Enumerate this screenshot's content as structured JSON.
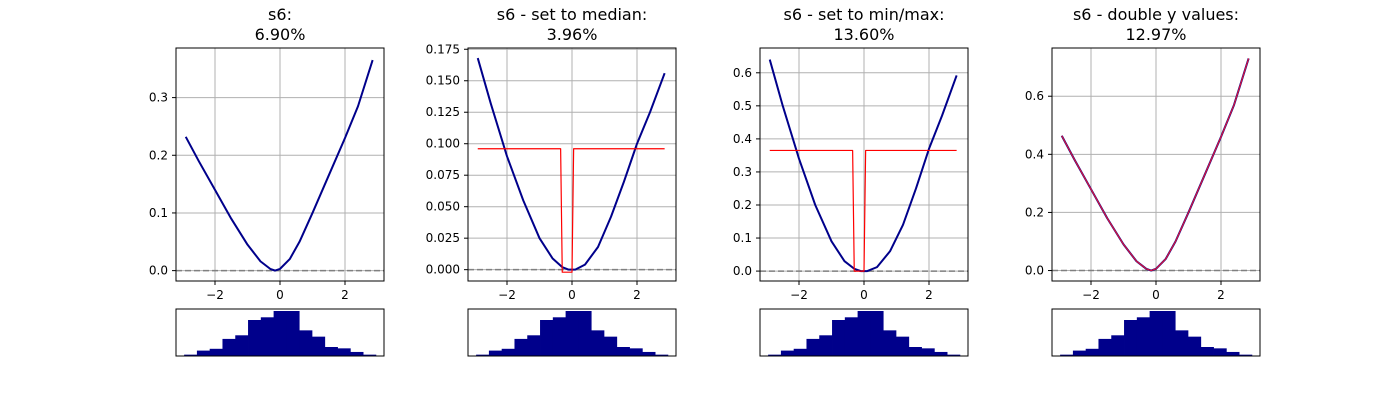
{
  "chart_data": [
    {
      "type": "line",
      "title_line1": "s6:",
      "title_line2": "6.90%",
      "xlim": [
        -3.2,
        3.2
      ],
      "ylim": [
        -0.018,
        0.386
      ],
      "xticks": [
        -2,
        0,
        2
      ],
      "xtick_labels": [
        "−2",
        "0",
        "2"
      ],
      "yticks": [
        0.0,
        0.1,
        0.2,
        0.3
      ],
      "ytick_labels": [
        "0.0",
        "0.1",
        "0.2",
        "0.3"
      ],
      "grid": true,
      "series": [
        {
          "color": "#00008b",
          "x": [
            -2.9,
            -2.5,
            -2.0,
            -1.5,
            -1.0,
            -0.6,
            -0.3,
            -0.15,
            0.0,
            0.3,
            0.6,
            1.0,
            1.5,
            2.0,
            2.4,
            2.85
          ],
          "y": [
            0.232,
            0.19,
            0.14,
            0.09,
            0.045,
            0.016,
            0.003,
            0.0,
            0.003,
            0.02,
            0.05,
            0.1,
            0.165,
            0.23,
            0.285,
            0.365
          ]
        }
      ],
      "reference_y": 0.0,
      "histogram": [
        0.03,
        0.12,
        0.16,
        0.38,
        0.46,
        0.8,
        0.86,
        1.0,
        1.0,
        0.57,
        0.43,
        0.2,
        0.17,
        0.09,
        0.03
      ]
    },
    {
      "type": "line",
      "title_line1": "s6 - set to median:",
      "title_line2": "3.96%",
      "xlim": [
        -3.2,
        3.2
      ],
      "ylim": [
        -0.009,
        0.176
      ],
      "xticks": [
        -2,
        0,
        2
      ],
      "xtick_labels": [
        "−2",
        "0",
        "2"
      ],
      "yticks": [
        0.0,
        0.025,
        0.05,
        0.075,
        0.1,
        0.125,
        0.15,
        0.175
      ],
      "ytick_labels": [
        "0.000",
        "0.025",
        "0.050",
        "0.075",
        "0.100",
        "0.125",
        "0.150",
        "0.175"
      ],
      "grid": true,
      "series": [
        {
          "color": "#00008b",
          "x": [
            -2.9,
            -2.5,
            -2.0,
            -1.5,
            -1.0,
            -0.6,
            -0.3,
            -0.1,
            0.1,
            0.4,
            0.8,
            1.2,
            1.6,
            2.0,
            2.4,
            2.85
          ],
          "y": [
            0.168,
            0.132,
            0.09,
            0.055,
            0.025,
            0.009,
            0.002,
            0.0,
            0.0,
            0.004,
            0.018,
            0.042,
            0.07,
            0.1,
            0.125,
            0.156
          ]
        },
        {
          "color": "#ff0000",
          "x": [
            -2.9,
            -0.35,
            -0.3,
            0.0,
            0.05,
            2.85
          ],
          "y": [
            0.096,
            0.096,
            -0.002,
            -0.002,
            0.096,
            0.096
          ]
        }
      ],
      "reference_y": 0.0,
      "histogram": [
        0.03,
        0.12,
        0.16,
        0.38,
        0.46,
        0.8,
        0.86,
        1.0,
        1.0,
        0.57,
        0.43,
        0.2,
        0.17,
        0.09,
        0.03
      ]
    },
    {
      "type": "line",
      "title_line1": "s6 - set to min/max:",
      "title_line2": "13.60%",
      "xlim": [
        -3.2,
        3.2
      ],
      "ylim": [
        -0.03,
        0.675
      ],
      "xticks": [
        -2,
        0,
        2
      ],
      "xtick_labels": [
        "−2",
        "0",
        "2"
      ],
      "yticks": [
        0.0,
        0.1,
        0.2,
        0.3,
        0.4,
        0.5,
        0.6
      ],
      "ytick_labels": [
        "0.0",
        "0.1",
        "0.2",
        "0.3",
        "0.4",
        "0.5",
        "0.6"
      ],
      "grid": true,
      "series": [
        {
          "color": "#00008b",
          "x": [
            -2.9,
            -2.5,
            -2.0,
            -1.5,
            -1.0,
            -0.6,
            -0.3,
            -0.1,
            0.1,
            0.4,
            0.8,
            1.2,
            1.6,
            2.0,
            2.4,
            2.85
          ],
          "y": [
            0.64,
            0.5,
            0.34,
            0.2,
            0.09,
            0.03,
            0.007,
            0.0,
            0.0,
            0.012,
            0.06,
            0.14,
            0.25,
            0.37,
            0.47,
            0.592
          ]
        },
        {
          "color": "#ff0000",
          "x": [
            -2.9,
            -0.35,
            -0.3,
            0.0,
            0.05,
            2.85
          ],
          "y": [
            0.365,
            0.365,
            0.0,
            0.0,
            0.365,
            0.365
          ]
        }
      ],
      "reference_y": 0.0,
      "histogram": [
        0.03,
        0.12,
        0.16,
        0.38,
        0.46,
        0.8,
        0.86,
        1.0,
        1.0,
        0.57,
        0.43,
        0.2,
        0.17,
        0.09,
        0.03
      ]
    },
    {
      "type": "line",
      "title_line1": "s6 - double y values:",
      "title_line2": "12.97%",
      "xlim": [
        -3.2,
        3.2
      ],
      "ylim": [
        -0.036,
        0.766
      ],
      "xticks": [
        -2,
        0,
        2
      ],
      "xtick_labels": [
        "−2",
        "0",
        "2"
      ],
      "yticks": [
        0.0,
        0.2,
        0.4,
        0.6
      ],
      "ytick_labels": [
        "0.0",
        "0.2",
        "0.4",
        "0.6"
      ],
      "grid": true,
      "series": [
        {
          "color": "#00008b",
          "x": [
            -2.9,
            -2.5,
            -2.0,
            -1.5,
            -1.0,
            -0.6,
            -0.3,
            -0.15,
            0.0,
            0.3,
            0.6,
            1.0,
            1.5,
            2.0,
            2.4,
            2.85
          ],
          "y": [
            0.464,
            0.38,
            0.28,
            0.18,
            0.09,
            0.032,
            0.006,
            0.0,
            0.006,
            0.04,
            0.1,
            0.2,
            0.33,
            0.46,
            0.57,
            0.73
          ]
        },
        {
          "color": "#dc143c",
          "x": [
            -2.9,
            -2.5,
            -2.0,
            -1.5,
            -1.0,
            -0.6,
            -0.3,
            -0.15,
            0.0,
            0.3,
            0.6,
            1.0,
            1.5,
            2.0,
            2.4,
            2.85
          ],
          "y": [
            0.464,
            0.38,
            0.28,
            0.18,
            0.09,
            0.032,
            0.006,
            0.0,
            0.006,
            0.04,
            0.1,
            0.2,
            0.33,
            0.46,
            0.57,
            0.73
          ]
        }
      ],
      "reference_y": 0.0,
      "histogram": [
        0.03,
        0.12,
        0.16,
        0.38,
        0.46,
        0.8,
        0.86,
        1.0,
        1.0,
        0.57,
        0.43,
        0.2,
        0.17,
        0.09,
        0.03
      ]
    }
  ],
  "colors": {
    "curve": "#00008b",
    "modified": "#ff0000",
    "reference_line": "#808080",
    "grid": "#b0b0b0",
    "histogram": "#00008b"
  }
}
